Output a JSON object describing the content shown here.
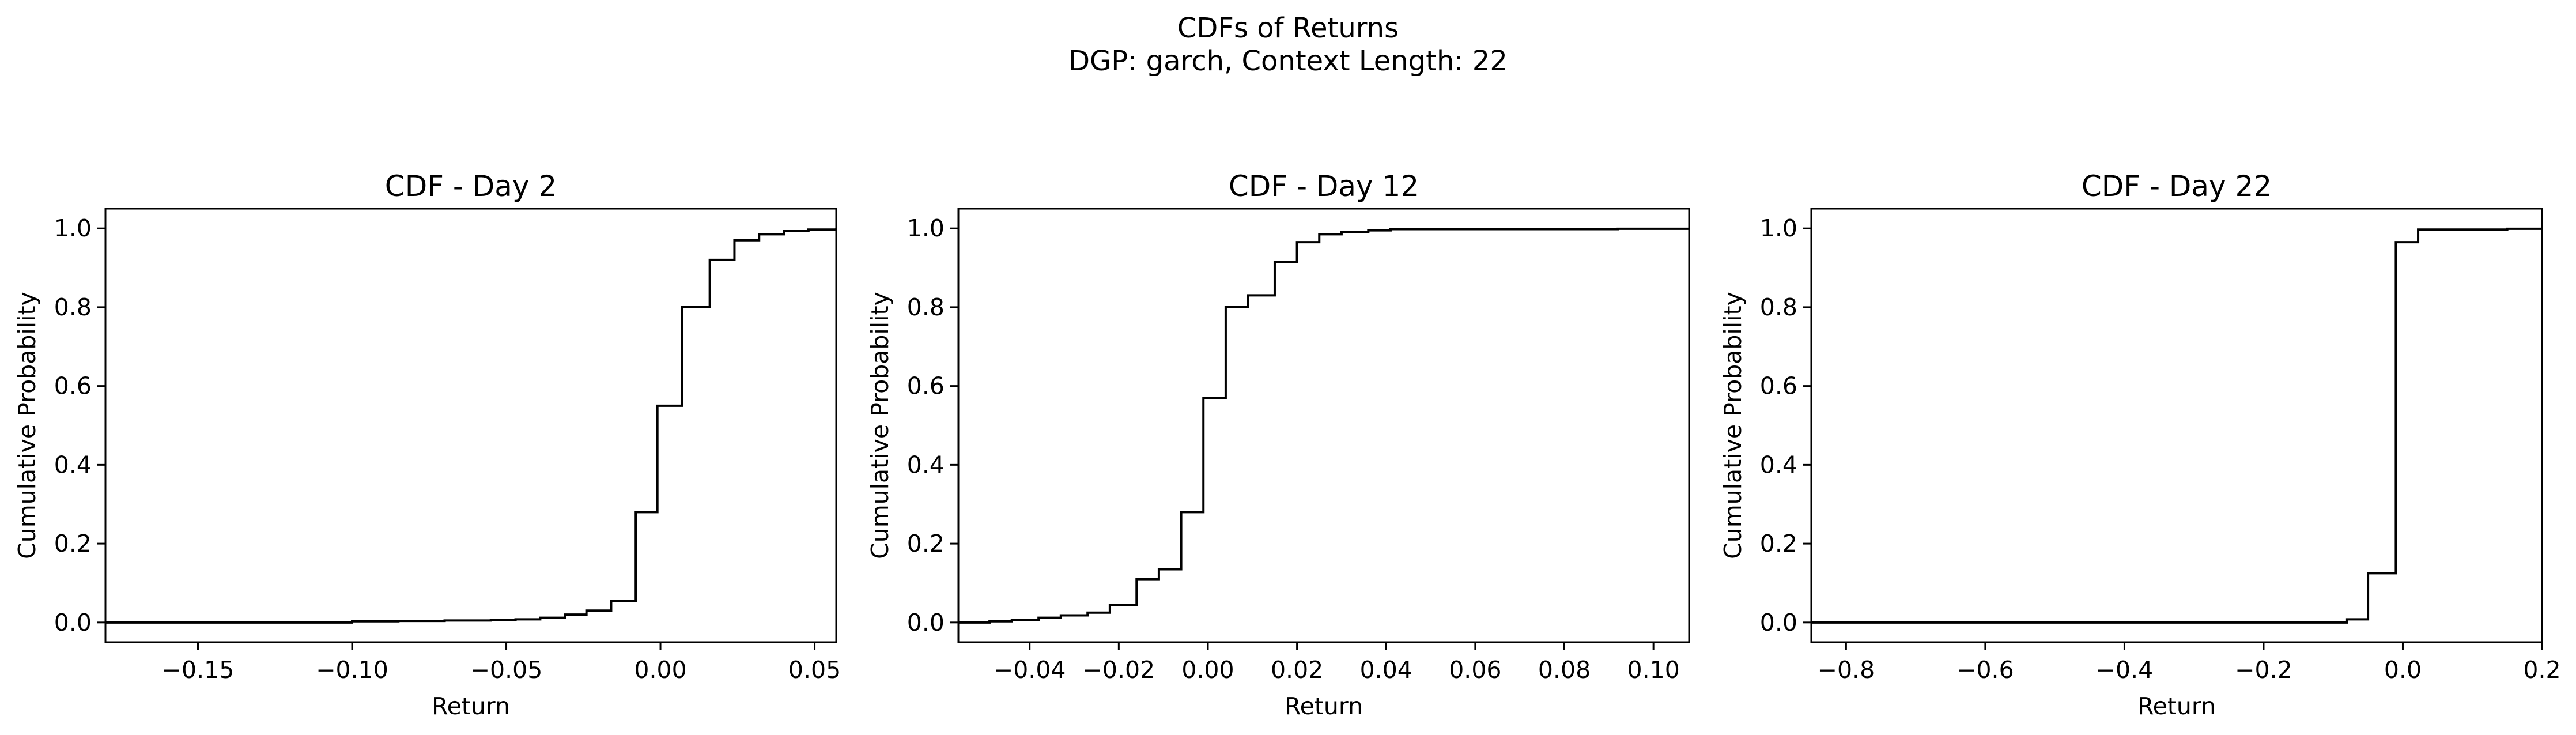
{
  "figure": {
    "title_line1": "CDFs of Returns",
    "title_line2": "DGP: garch, Context Length: 22"
  },
  "chart_data": [
    {
      "type": "line",
      "step": true,
      "title": "CDF - Day 2",
      "xlabel": "Return",
      "ylabel": "Cumulative Probability",
      "xlim": [
        -0.18,
        0.057
      ],
      "ylim": [
        -0.05,
        1.05
      ],
      "xticks": [
        -0.15,
        -0.1,
        -0.05,
        0.0,
        0.05
      ],
      "xtick_labels": [
        "−0.15",
        "−0.10",
        "−0.05",
        "0.00",
        "0.05"
      ],
      "yticks": [
        0.0,
        0.2,
        0.4,
        0.6,
        0.8,
        1.0
      ],
      "ytick_labels": [
        "0.0",
        "0.2",
        "0.4",
        "0.6",
        "0.8",
        "1.0"
      ],
      "grid": false,
      "x": [
        -0.18,
        -0.1,
        -0.085,
        -0.07,
        -0.055,
        -0.047,
        -0.039,
        -0.031,
        -0.024,
        -0.016,
        -0.008,
        -0.001,
        0.007,
        0.016,
        0.024,
        0.032,
        0.04,
        0.048,
        0.057
      ],
      "y": [
        0.0,
        0.003,
        0.004,
        0.005,
        0.006,
        0.008,
        0.012,
        0.02,
        0.03,
        0.055,
        0.28,
        0.55,
        0.8,
        0.92,
        0.97,
        0.985,
        0.993,
        0.997,
        1.0
      ]
    },
    {
      "type": "line",
      "step": true,
      "title": "CDF - Day 12",
      "xlabel": "Return",
      "ylabel": "Cumulative Probability",
      "xlim": [
        -0.056,
        0.108
      ],
      "ylim": [
        -0.05,
        1.05
      ],
      "xticks": [
        -0.04,
        -0.02,
        0.0,
        0.02,
        0.04,
        0.06,
        0.08,
        0.1
      ],
      "xtick_labels": [
        "−0.04",
        "−0.02",
        "0.00",
        "0.02",
        "0.04",
        "0.06",
        "0.08",
        "0.10"
      ],
      "yticks": [
        0.0,
        0.2,
        0.4,
        0.6,
        0.8,
        1.0
      ],
      "ytick_labels": [
        "0.0",
        "0.2",
        "0.4",
        "0.6",
        "0.8",
        "1.0"
      ],
      "grid": false,
      "x": [
        -0.056,
        -0.049,
        -0.044,
        -0.038,
        -0.033,
        -0.027,
        -0.022,
        -0.016,
        -0.011,
        -0.006,
        -0.001,
        0.004,
        0.009,
        0.015,
        0.02,
        0.025,
        0.03,
        0.036,
        0.041,
        0.092,
        0.108
      ],
      "y": [
        0.0,
        0.003,
        0.007,
        0.012,
        0.018,
        0.025,
        0.045,
        0.11,
        0.135,
        0.28,
        0.57,
        0.8,
        0.83,
        0.915,
        0.965,
        0.985,
        0.99,
        0.995,
        0.998,
        0.999,
        1.0
      ]
    },
    {
      "type": "line",
      "step": true,
      "title": "CDF - Day 22",
      "xlabel": "Return",
      "ylabel": "Cumulative Probability",
      "xlim": [
        -0.85,
        0.2
      ],
      "ylim": [
        -0.05,
        1.05
      ],
      "xticks": [
        -0.8,
        -0.6,
        -0.4,
        -0.2,
        0.0,
        0.2
      ],
      "xtick_labels": [
        "−0.8",
        "−0.6",
        "−0.4",
        "−0.2",
        "0.0",
        "0.2"
      ],
      "yticks": [
        0.0,
        0.2,
        0.4,
        0.6,
        0.8,
        1.0
      ],
      "ytick_labels": [
        "0.0",
        "0.2",
        "0.4",
        "0.6",
        "0.8",
        "1.0"
      ],
      "grid": false,
      "x": [
        -0.85,
        -0.08,
        -0.05,
        -0.01,
        0.022,
        0.15,
        0.2
      ],
      "y": [
        0.0,
        0.008,
        0.125,
        0.965,
        0.997,
        0.999,
        1.0
      ]
    }
  ]
}
